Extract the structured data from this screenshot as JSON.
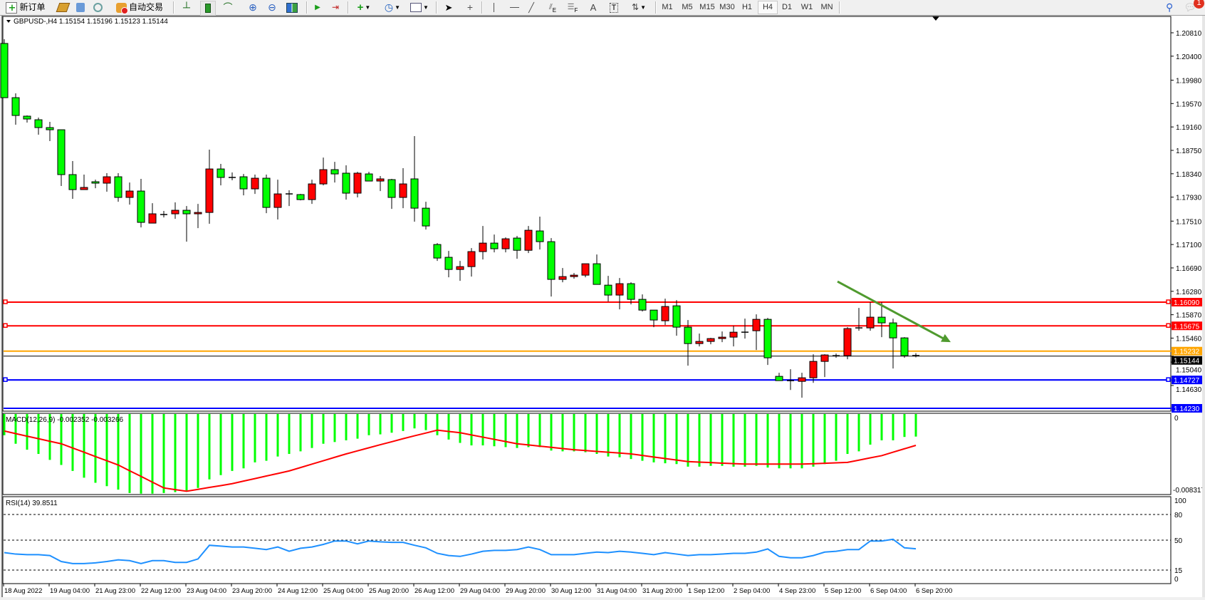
{
  "toolbar": {
    "new_order_label": "新订单",
    "auto_trading_label": "自动交易",
    "timeframes": [
      "M1",
      "M5",
      "M15",
      "M30",
      "H1",
      "H4",
      "D1",
      "W1",
      "MN"
    ],
    "active_timeframe": "H4",
    "notification_count": "1",
    "channel_letter": "E",
    "fibo_letter": "F",
    "text_letter": "A",
    "label_letter": "T"
  },
  "chart": {
    "header": "GBPUSD-,H4  1.15154 1.15196 1.15123 1.15144",
    "macd_label": "MACD(12,26,9) -0.002352 -0.003266",
    "rsi_label": "RSI(14) 39.8511",
    "colors": {
      "bear": "#00ff00",
      "bull": "#ff0000",
      "resistance": "#ff0000",
      "pivot": "#ffa500",
      "support": "#0000ff",
      "trendline": "#4f9a2e",
      "macd_hist": "#00ff00",
      "macd_signal": "#ff0000",
      "rsi": "#1e90ff"
    }
  },
  "chart_data": {
    "type": "candlestick",
    "symbol": "GBPUSD-",
    "timeframe": "H4",
    "ylim": [
      1.1423,
      1.2095
    ],
    "price_ticks": [
      "1.20810",
      "1.20400",
      "1.19980",
      "1.19570",
      "1.19160",
      "1.18750",
      "1.18340",
      "1.17930",
      "1.17510",
      "1.17100",
      "1.16690",
      "1.16280",
      "1.15870",
      "1.15460",
      "1.15040",
      "1.14630"
    ],
    "time_ticks": [
      "18 Aug 2022",
      "19 Aug 04:00",
      "21 Aug 23:00",
      "22 Aug 12:00",
      "23 Aug 04:00",
      "23 Aug 20:00",
      "24 Aug 12:00",
      "25 Aug 04:00",
      "25 Aug 20:00",
      "26 Aug 12:00",
      "29 Aug 04:00",
      "29 Aug 20:00",
      "30 Aug 12:00",
      "31 Aug 04:00",
      "31 Aug 20:00",
      "1 Sep 12:00",
      "2 Sep 04:00",
      "4 Sep 23:00",
      "5 Sep 12:00",
      "6 Sep 04:00",
      "6 Sep 20:00"
    ],
    "ohlc": [
      [
        1.20623,
        1.20698,
        1.19673,
        1.19673
      ],
      [
        1.19673,
        1.19748,
        1.19199,
        1.19361
      ],
      [
        1.19349,
        1.19361,
        1.19236,
        1.19299
      ],
      [
        1.19286,
        1.19324,
        1.19024,
        1.19149
      ],
      [
        1.19149,
        1.19249,
        1.18912,
        1.19111
      ],
      [
        1.19111,
        1.19111,
        1.18125,
        1.18325
      ],
      [
        1.18325,
        1.18562,
        1.179,
        1.18062
      ],
      [
        1.18062,
        1.18325,
        1.18062,
        1.181
      ],
      [
        1.182,
        1.18237,
        1.18087,
        1.18175
      ],
      [
        1.18175,
        1.1835,
        1.18025,
        1.18287
      ],
      [
        1.18287,
        1.1835,
        1.1785,
        1.17925
      ],
      [
        1.17925,
        1.18187,
        1.178,
        1.18037
      ],
      [
        1.18037,
        1.1825,
        1.174,
        1.17488
      ],
      [
        1.17475,
        1.17825,
        1.17475,
        1.17638
      ],
      [
        1.17625,
        1.17688,
        1.17575,
        1.17625
      ],
      [
        1.17638,
        1.17838,
        1.1755,
        1.177
      ],
      [
        1.177,
        1.17775,
        1.1715,
        1.17638
      ],
      [
        1.17638,
        1.17812,
        1.17388,
        1.17662
      ],
      [
        1.17662,
        1.18762,
        1.17463,
        1.18424
      ],
      [
        1.18424,
        1.18512,
        1.18137,
        1.18275
      ],
      [
        1.18275,
        1.18362,
        1.18225,
        1.18275
      ],
      [
        1.18287,
        1.18337,
        1.17962,
        1.18075
      ],
      [
        1.18075,
        1.18325,
        1.17987,
        1.18262
      ],
      [
        1.18262,
        1.18325,
        1.1765,
        1.1775
      ],
      [
        1.1775,
        1.18237,
        1.17538,
        1.17987
      ],
      [
        1.17987,
        1.1805,
        1.17775,
        1.17987
      ],
      [
        1.17975,
        1.17987,
        1.17875,
        1.17887
      ],
      [
        1.17887,
        1.18237,
        1.17812,
        1.18162
      ],
      [
        1.18162,
        1.18624,
        1.18137,
        1.18412
      ],
      [
        1.18412,
        1.18549,
        1.18187,
        1.18337
      ],
      [
        1.1835,
        1.18487,
        1.17887,
        1.18
      ],
      [
        1.18,
        1.18374,
        1.17925,
        1.1835
      ],
      [
        1.18337,
        1.18374,
        1.18212,
        1.18212
      ],
      [
        1.18212,
        1.183,
        1.18037,
        1.1825
      ],
      [
        1.18237,
        1.1825,
        1.17725,
        1.17925
      ],
      [
        1.17925,
        1.18437,
        1.17737,
        1.18162
      ],
      [
        1.1825,
        1.19,
        1.175,
        1.17737
      ],
      [
        1.17737,
        1.1785,
        1.17363,
        1.17425
      ],
      [
        1.171,
        1.17125,
        1.16813,
        1.16863
      ],
      [
        1.16876,
        1.16988,
        1.16526,
        1.16663
      ],
      [
        1.16663,
        1.16813,
        1.16464,
        1.16713
      ],
      [
        1.16713,
        1.17038,
        1.16538,
        1.16976
      ],
      [
        1.16976,
        1.17425,
        1.16838,
        1.17125
      ],
      [
        1.17125,
        1.17275,
        1.16963,
        1.17026
      ],
      [
        1.17026,
        1.17225,
        1.16963,
        1.172
      ],
      [
        1.17213,
        1.1725,
        1.16851,
        1.16999
      ],
      [
        1.16999,
        1.17425,
        1.16951,
        1.1735
      ],
      [
        1.17338,
        1.17588,
        1.17013,
        1.1715
      ],
      [
        1.1715,
        1.17213,
        1.16189,
        1.16489
      ],
      [
        1.16489,
        1.16688,
        1.16439,
        1.16538
      ],
      [
        1.16538,
        1.16601,
        1.16501,
        1.16563
      ],
      [
        1.16563,
        1.16763,
        1.16526,
        1.16763
      ],
      [
        1.16763,
        1.16926,
        1.16401,
        1.16401
      ],
      [
        1.16388,
        1.16551,
        1.16101,
        1.16214
      ],
      [
        1.16214,
        1.16514,
        1.15964,
        1.16414
      ],
      [
        1.16414,
        1.16439,
        1.16051,
        1.16139
      ],
      [
        1.16139,
        1.16226,
        1.15926,
        1.15951
      ],
      [
        1.15951,
        1.15951,
        1.15652,
        1.15777
      ],
      [
        1.15764,
        1.16151,
        1.15689,
        1.16014
      ],
      [
        1.16026,
        1.16126,
        1.15502,
        1.15652
      ],
      [
        1.15652,
        1.15777,
        1.14977,
        1.15364
      ],
      [
        1.15364,
        1.15539,
        1.15314,
        1.15402
      ],
      [
        1.15402,
        1.15464,
        1.15352,
        1.15452
      ],
      [
        1.15452,
        1.15577,
        1.15389,
        1.15477
      ],
      [
        1.15477,
        1.15677,
        1.15314,
        1.15564
      ],
      [
        1.15564,
        1.15802,
        1.15452,
        1.15564
      ],
      [
        1.15589,
        1.15877,
        1.15252,
        1.15789
      ],
      [
        1.15789,
        1.15814,
        1.1499,
        1.15115
      ],
      [
        1.1479,
        1.14852,
        1.14715,
        1.14715
      ],
      [
        1.14715,
        1.14915,
        1.14552,
        1.14715
      ],
      [
        1.14702,
        1.14852,
        1.14415,
        1.14765
      ],
      [
        1.14765,
        1.15177,
        1.14677,
        1.15052
      ],
      [
        1.15052,
        1.15177,
        1.14777,
        1.15165
      ],
      [
        1.15152,
        1.1519,
        1.15115,
        1.15152
      ],
      [
        1.15152,
        1.15652,
        1.1509,
        1.15627
      ],
      [
        1.15639,
        1.15989,
        1.15589,
        1.15639
      ],
      [
        1.15639,
        1.16089,
        1.15589,
        1.15827
      ],
      [
        1.15827,
        1.16089,
        1.15477,
        1.15727
      ],
      [
        1.15727,
        1.15802,
        1.14927,
        1.15464
      ],
      [
        1.15464,
        1.15477,
        1.15115,
        1.15152
      ],
      [
        1.15154,
        1.15196,
        1.15123,
        1.15144
      ]
    ],
    "horizontal_lines": [
      {
        "price": "1.16090",
        "color": "#ff0000"
      },
      {
        "price": "1.15675",
        "color": "#ff0000"
      },
      {
        "price": "1.15232",
        "color": "#ffa500"
      },
      {
        "price": "1.15144",
        "color": "#000000"
      },
      {
        "price": "1.14727",
        "color": "#0000ff"
      },
      {
        "price": "1.14230",
        "color": "#0000ff"
      }
    ],
    "trendline_arrow": {
      "from_price": 1.16451,
      "to_price": 1.15389,
      "color": "#4f9a2e"
    },
    "macd": {
      "ylim": [
        -0.008317,
        0
      ],
      "ticks": [
        "0",
        "-0.008317"
      ],
      "histogram": [
        -0.00221,
        -0.0031,
        -0.00372,
        -0.00416,
        -0.00478,
        -0.00531,
        -0.00593,
        -0.00664,
        -0.00717,
        -0.00752,
        -0.00788,
        -0.00823,
        -0.0083,
        -0.0083,
        -0.00823,
        -0.00814,
        -0.00797,
        -0.0077,
        -0.00681,
        -0.00637,
        -0.00593,
        -0.00566,
        -0.00504,
        -0.00487,
        -0.00443,
        -0.00416,
        -0.00389,
        -0.00354,
        -0.0031,
        -0.00292,
        -0.00274,
        -0.00257,
        -0.00221,
        -0.00212,
        -0.00195,
        -0.00177,
        -0.0015,
        -0.00168,
        -0.00221,
        -0.00266,
        -0.00301,
        -0.00327,
        -0.00327,
        -0.00336,
        -0.00345,
        -0.00354,
        -0.00345,
        -0.00345,
        -0.00381,
        -0.00389,
        -0.00389,
        -0.00398,
        -0.00416,
        -0.00443,
        -0.00451,
        -0.00469,
        -0.00487,
        -0.00504,
        -0.00513,
        -0.00522,
        -0.00549,
        -0.00549,
        -0.0054,
        -0.0054,
        -0.00549,
        -0.00549,
        -0.0054,
        -0.00558,
        -0.00566,
        -0.00566,
        -0.00566,
        -0.00549,
        -0.00522,
        -0.00487,
        -0.00416,
        -0.00389,
        -0.00319,
        -0.00274,
        -0.00274,
        -0.00239,
        -0.002352
      ],
      "signal": [
        -0.00177,
        -0.00204,
        -0.00231,
        -0.00257,
        -0.00284,
        -0.0031,
        -0.00354,
        -0.00398,
        -0.00443,
        -0.00487,
        -0.00531,
        -0.00591,
        -0.0065,
        -0.0071,
        -0.0077,
        -0.00788,
        -0.00805,
        -0.00785,
        -0.00765,
        -0.00746,
        -0.00726,
        -0.00699,
        -0.00673,
        -0.00646,
        -0.0062,
        -0.00593,
        -0.00558,
        -0.00522,
        -0.00487,
        -0.00451,
        -0.00416,
        -0.00384,
        -0.00352,
        -0.0032,
        -0.00289,
        -0.00257,
        -0.00227,
        -0.00198,
        -0.00168,
        -0.00182,
        -0.00195,
        -0.00218,
        -0.00241,
        -0.00264,
        -0.00287,
        -0.0031,
        -0.00322,
        -0.00335,
        -0.00347,
        -0.0036,
        -0.00372,
        -0.00381,
        -0.0039,
        -0.00398,
        -0.00407,
        -0.00416,
        -0.00432,
        -0.00448,
        -0.00464,
        -0.0048,
        -0.00496,
        -0.00501,
        -0.00506,
        -0.00512,
        -0.00517,
        -0.00522,
        -0.00522,
        -0.00522,
        -0.00522,
        -0.00522,
        -0.00522,
        -0.00518,
        -0.00513,
        -0.00509,
        -0.00504,
        -0.00481,
        -0.00457,
        -0.00434,
        -0.00398,
        -0.00362,
        -0.003266
      ]
    },
    "rsi": {
      "ylim": [
        0,
        100
      ],
      "ticks": [
        "100",
        "80",
        "50",
        "15",
        "0"
      ],
      "levels": [
        80,
        50,
        15
      ],
      "values": [
        35.4,
        33.7,
        33,
        33,
        32,
        25,
        22.6,
        22.6,
        23.4,
        25,
        27,
        26,
        22.6,
        26,
        26,
        24,
        24,
        28,
        44,
        43,
        42,
        42,
        40.5,
        39,
        42,
        37,
        40.5,
        42,
        45,
        49,
        49,
        45.7,
        49,
        48,
        47.4,
        47.4,
        44,
        41,
        34.6,
        32,
        31,
        33.7,
        37,
        38,
        38,
        39,
        42,
        39,
        33,
        33,
        33,
        34.6,
        36,
        35.4,
        37,
        36,
        34.6,
        33,
        35.4,
        33.7,
        32,
        33,
        33,
        33.7,
        34.6,
        34.6,
        36,
        39.7,
        31,
        29.4,
        29.4,
        32,
        36,
        37,
        39,
        39,
        49,
        49,
        51,
        41,
        39.8511
      ]
    }
  }
}
